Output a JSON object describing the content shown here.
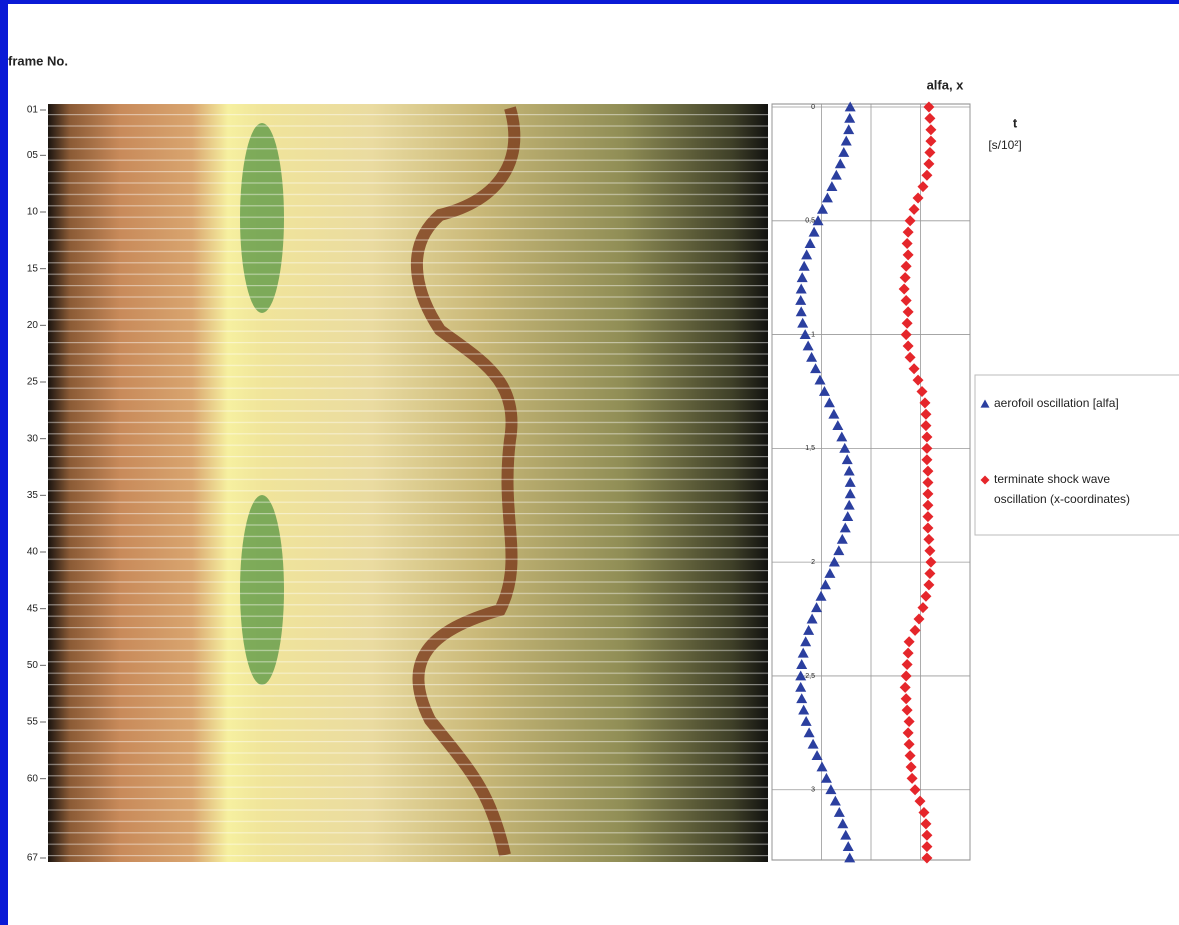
{
  "image": {
    "frame_label": "frame No.",
    "frame_ticks": [
      {
        "value": 1,
        "label": "01"
      },
      {
        "value": 5,
        "label": "05"
      },
      10,
      15,
      20,
      25,
      30,
      35,
      40,
      45,
      50,
      55,
      60,
      67
    ],
    "frame_lim": [
      1,
      67
    ]
  },
  "chart_data": {
    "type": "scatter",
    "value_axis_label": "alfa, x",
    "t_axis_label": "t",
    "t_axis_unit": "[s/10²]",
    "t": [
      0,
      0.05,
      0.1,
      0.15,
      0.2,
      0.25,
      0.3,
      0.35,
      0.4,
      0.45,
      0.5,
      0.55,
      0.6,
      0.65,
      0.7,
      0.75,
      0.8,
      0.85,
      0.9,
      0.95,
      1,
      1.05,
      1.1,
      1.15,
      1.2,
      1.25,
      1.3,
      1.35,
      1.4,
      1.45,
      1.5,
      1.55,
      1.6,
      1.65,
      1.7,
      1.75,
      1.8,
      1.85,
      1.9,
      1.95,
      2,
      2.05,
      2.1,
      2.15,
      2.2,
      2.25,
      2.3,
      2.35,
      2.4,
      2.45,
      2.5,
      2.55,
      2.6,
      2.65,
      2.7,
      2.75,
      2.8,
      2.85,
      2.9,
      2.95,
      3,
      3.05,
      3.1,
      3.15,
      3.2,
      3.25,
      3.3
    ],
    "tlim": [
      0,
      3.3
    ],
    "tticks": [
      0,
      {
        "value": 0.5,
        "label": "0,5"
      },
      1,
      {
        "value": 1.5,
        "label": "1,5"
      },
      2,
      {
        "value": 2.5,
        "label": "2,5"
      },
      3
    ],
    "vlim": [
      0,
      4
    ],
    "vticks": [
      0,
      1,
      2,
      3,
      4
    ],
    "grid": true,
    "legend": "right",
    "series": [
      {
        "name": "aerofoil oscillation [alfa]",
        "color": "#2b3f9f",
        "marker": "triangle",
        "values": [
          1.58,
          1.57,
          1.55,
          1.5,
          1.45,
          1.38,
          1.3,
          1.21,
          1.12,
          1.02,
          0.93,
          0.85,
          0.77,
          0.7,
          0.65,
          0.61,
          0.59,
          0.58,
          0.59,
          0.62,
          0.67,
          0.73,
          0.8,
          0.88,
          0.97,
          1.06,
          1.16,
          1.25,
          1.33,
          1.41,
          1.47,
          1.52,
          1.56,
          1.58,
          1.58,
          1.56,
          1.53,
          1.48,
          1.42,
          1.35,
          1.26,
          1.17,
          1.08,
          0.99,
          0.9,
          0.81,
          0.74,
          0.68,
          0.63,
          0.6,
          0.58,
          0.58,
          0.6,
          0.64,
          0.69,
          0.75,
          0.83,
          0.91,
          1.01,
          1.1,
          1.19,
          1.28,
          1.36,
          1.43,
          1.49,
          1.54,
          1.57
        ]
      },
      {
        "name": "terminate shock wave oscillation (x-coordinates)",
        "color": "#e5262b",
        "marker": "diamond",
        "values": [
          3.17,
          3.19,
          3.21,
          3.21,
          3.19,
          3.17,
          3.13,
          3.05,
          2.95,
          2.87,
          2.79,
          2.75,
          2.73,
          2.75,
          2.71,
          2.69,
          2.67,
          2.71,
          2.75,
          2.73,
          2.71,
          2.75,
          2.79,
          2.87,
          2.95,
          3.03,
          3.09,
          3.11,
          3.11,
          3.13,
          3.13,
          3.13,
          3.15,
          3.15,
          3.15,
          3.15,
          3.15,
          3.15,
          3.17,
          3.19,
          3.21,
          3.19,
          3.17,
          3.11,
          3.05,
          2.97,
          2.89,
          2.77,
          2.75,
          2.73,
          2.71,
          2.69,
          2.71,
          2.73,
          2.77,
          2.75,
          2.77,
          2.79,
          2.81,
          2.83,
          2.89,
          2.99,
          3.07,
          3.11,
          3.13,
          3.13,
          3.13
        ]
      }
    ]
  }
}
